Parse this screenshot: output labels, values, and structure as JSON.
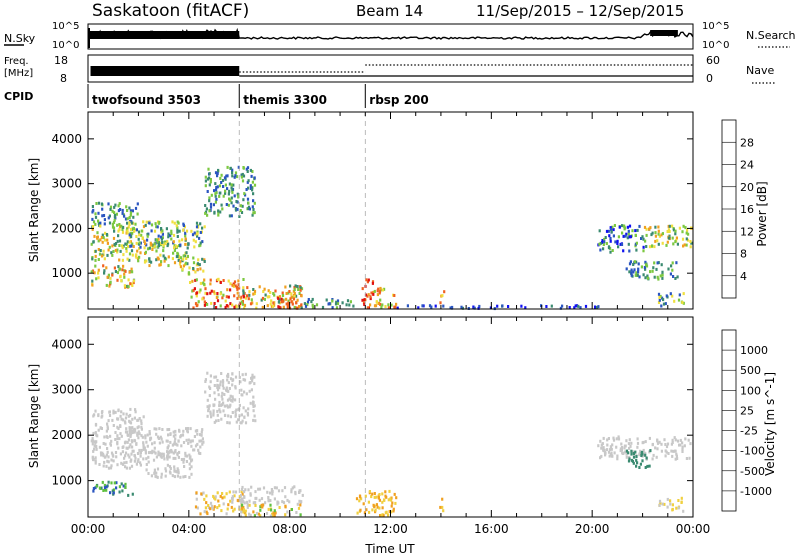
{
  "header": {
    "title": "Saskatoon (fitACF)",
    "beam": "Beam 14",
    "daterange": "11/Sep/2015 – 12/Sep/2015"
  },
  "top_panels": {
    "nsky_label": "N.Sky",
    "nsky_ticks": [
      "10^5",
      "10^0"
    ],
    "nsearch_label": "N.Search",
    "nsearch_ticks": [
      "10^5",
      "10^0"
    ],
    "freq_label_1": "Freq.",
    "freq_label_2": "[MHz]",
    "freq_ticks": [
      "18",
      "8"
    ],
    "nave_label": "Nave",
    "nave_ticks": [
      "60",
      "0"
    ],
    "cpid_label": "CPID",
    "cpid_segments": [
      {
        "label": "twofsound 3503",
        "start_hour": 0,
        "end_hour": 6
      },
      {
        "label": "themis 3300",
        "start_hour": 6,
        "end_hour": 11
      },
      {
        "label": "rbsp 200",
        "start_hour": 11,
        "end_hour": 24
      }
    ]
  },
  "chart_data": [
    {
      "type": "heatmap",
      "name": "power",
      "ylabel": "Slant Range [km]",
      "yticks": [
        1000,
        2000,
        3000,
        4000
      ],
      "ylim": [
        200,
        4600
      ],
      "xlim": [
        0,
        24
      ],
      "colorbar_label": "Power [dB]",
      "colorbar_ticks": [
        "4",
        "8",
        "12",
        "16",
        "20",
        "24",
        "28"
      ],
      "colors": [
        "#1010f0",
        "#2a55c0",
        "#3a8a70",
        "#7cc840",
        "#f0e040",
        "#f0a020",
        "#f06020",
        "#e01010"
      ],
      "regions": [
        {
          "x0": 0.1,
          "x1": 2.0,
          "y0": 2100,
          "y1": 2600,
          "c": [
            1,
            3
          ]
        },
        {
          "x0": 0.1,
          "x1": 2.2,
          "y0": 1300,
          "y1": 2100,
          "c": [
            2,
            5
          ]
        },
        {
          "x0": 1.5,
          "x1": 4.6,
          "y0": 1600,
          "y1": 2200,
          "c": [
            1,
            4
          ]
        },
        {
          "x0": 0.1,
          "x1": 1.8,
          "y0": 700,
          "y1": 1200,
          "c": [
            2,
            6
          ]
        },
        {
          "x0": 2.2,
          "x1": 4.0,
          "y0": 1200,
          "y1": 1800,
          "c": [
            2,
            5
          ]
        },
        {
          "x0": 3.6,
          "x1": 4.6,
          "y0": 1000,
          "y1": 1400,
          "c": [
            2,
            5
          ]
        },
        {
          "x0": 4.6,
          "x1": 6.6,
          "y0": 2300,
          "y1": 3400,
          "c": [
            1,
            3
          ]
        },
        {
          "x0": 4.0,
          "x1": 6.2,
          "y0": 250,
          "y1": 900,
          "c": [
            3,
            7
          ]
        },
        {
          "x0": 6.0,
          "x1": 8.5,
          "y0": 250,
          "y1": 750,
          "c": [
            2,
            6
          ]
        },
        {
          "x0": 7.5,
          "x1": 8.3,
          "y0": 250,
          "y1": 600,
          "c": [
            5,
            7
          ]
        },
        {
          "x0": 8.5,
          "x1": 10.5,
          "y0": 250,
          "y1": 450,
          "c": [
            1,
            3
          ]
        },
        {
          "x0": 10.8,
          "x1": 11.3,
          "y0": 250,
          "y1": 900,
          "c": [
            5,
            7
          ]
        },
        {
          "x0": 11.3,
          "x1": 12.2,
          "y0": 250,
          "y1": 700,
          "c": [
            3,
            6
          ]
        },
        {
          "x0": 12.2,
          "x1": 20.5,
          "y0": 240,
          "y1": 310,
          "c": [
            0,
            2
          ]
        },
        {
          "x0": 13.9,
          "x1": 14.1,
          "y0": 350,
          "y1": 650,
          "c": [
            4,
            6
          ]
        },
        {
          "x0": 20.2,
          "x1": 22.0,
          "y0": 1500,
          "y1": 2100,
          "c": [
            0,
            3
          ]
        },
        {
          "x0": 22.0,
          "x1": 23.9,
          "y0": 1600,
          "y1": 2100,
          "c": [
            2,
            5
          ]
        },
        {
          "x0": 21.3,
          "x1": 23.4,
          "y0": 900,
          "y1": 1300,
          "c": [
            1,
            3
          ]
        },
        {
          "x0": 22.6,
          "x1": 23.6,
          "y0": 300,
          "y1": 600,
          "c": [
            1,
            4
          ]
        }
      ]
    },
    {
      "type": "heatmap",
      "name": "velocity",
      "ylabel": "Slant Range [km]",
      "yticks": [
        1000,
        2000,
        3000,
        4000
      ],
      "ylim": [
        200,
        4600
      ],
      "xlim": [
        0,
        24
      ],
      "xticks": [
        "00:00",
        "04:00",
        "08:00",
        "12:00",
        "16:00",
        "20:00",
        "00:00"
      ],
      "xlabel": "Time UT",
      "colorbar_label": "Velocity [m s^-1]",
      "colorbar_ticks": [
        "-1000",
        "-500",
        "-100",
        "-25",
        "25",
        "100",
        "500",
        "1000"
      ],
      "colors": [
        "#e01010",
        "#f06020",
        "#f0a020",
        "#f0d040",
        "#c8c8c8",
        "#60c040",
        "#3a8a70",
        "#2a55c0",
        "#1010f0"
      ],
      "regions": [
        {
          "x0": 0.1,
          "x1": 2.2,
          "y0": 1300,
          "y1": 2600,
          "c": [
            4,
            4
          ]
        },
        {
          "x0": 1.5,
          "x1": 4.6,
          "y0": 1600,
          "y1": 2200,
          "c": [
            4,
            4
          ]
        },
        {
          "x0": 0.1,
          "x1": 1.8,
          "y0": 700,
          "y1": 1000,
          "c": [
            5,
            7
          ]
        },
        {
          "x0": 2.2,
          "x1": 4.2,
          "y0": 1100,
          "y1": 1700,
          "c": [
            4,
            4
          ]
        },
        {
          "x0": 4.6,
          "x1": 6.6,
          "y0": 2300,
          "y1": 3400,
          "c": [
            4,
            4
          ]
        },
        {
          "x0": 4.2,
          "x1": 6.2,
          "y0": 300,
          "y1": 800,
          "c": [
            2,
            4
          ]
        },
        {
          "x0": 6.0,
          "x1": 8.5,
          "y0": 500,
          "y1": 900,
          "c": [
            4,
            4
          ]
        },
        {
          "x0": 6.0,
          "x1": 8.5,
          "y0": 250,
          "y1": 500,
          "c": [
            2,
            5
          ]
        },
        {
          "x0": 10.6,
          "x1": 12.2,
          "y0": 250,
          "y1": 800,
          "c": [
            2,
            3
          ]
        },
        {
          "x0": 13.9,
          "x1": 14.1,
          "y0": 350,
          "y1": 650,
          "c": [
            2,
            3
          ]
        },
        {
          "x0": 20.2,
          "x1": 23.9,
          "y0": 1500,
          "y1": 2000,
          "c": [
            4,
            4
          ]
        },
        {
          "x0": 21.3,
          "x1": 22.3,
          "y0": 1300,
          "y1": 1700,
          "c": [
            6,
            6
          ]
        },
        {
          "x0": 22.6,
          "x1": 23.6,
          "y0": 350,
          "y1": 650,
          "c": [
            3,
            4
          ]
        }
      ]
    }
  ]
}
